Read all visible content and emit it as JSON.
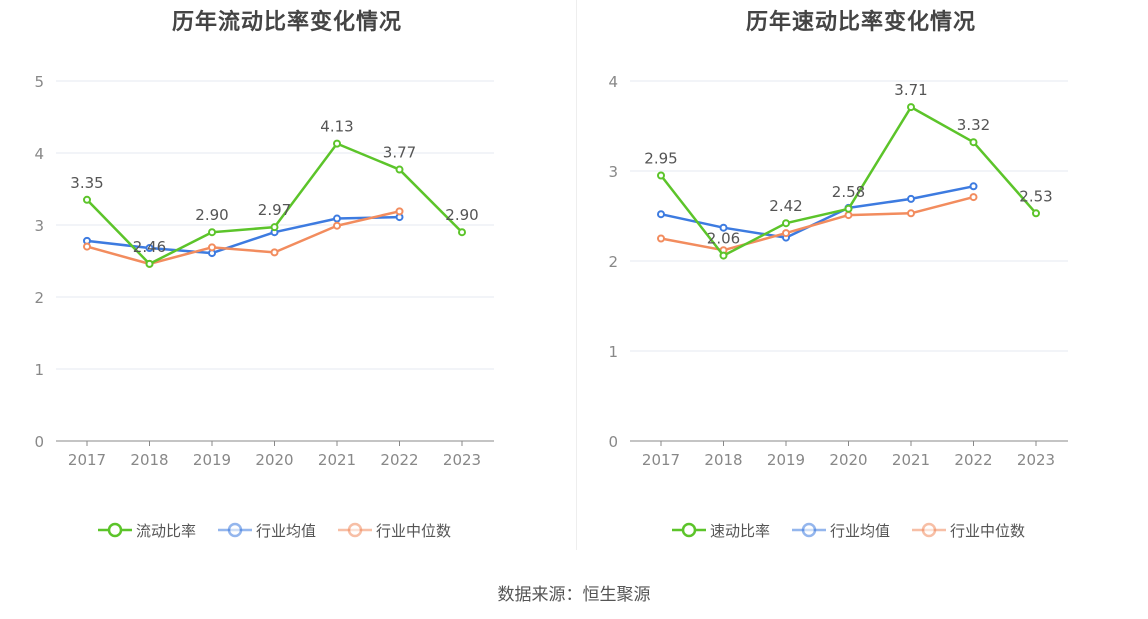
{
  "chart_data": [
    {
      "type": "line",
      "title": "历年流动比率变化情况",
      "categories": [
        "2017",
        "2018",
        "2019",
        "2020",
        "2021",
        "2022",
        "2023"
      ],
      "ylim": [
        0,
        5
      ],
      "yticks": [
        "0",
        "1",
        "2",
        "3",
        "4",
        "5"
      ],
      "series": [
        {
          "name": "流动比率",
          "color": "#5cc42a",
          "values": [
            3.35,
            2.46,
            2.9,
            2.97,
            4.13,
            3.77,
            2.9
          ],
          "labels": [
            "3.35",
            "2.46",
            "2.90",
            "2.97",
            "4.13",
            "3.77",
            "2.90"
          ]
        },
        {
          "name": "行业均值",
          "color": "#3d7be0",
          "values": [
            2.78,
            2.68,
            2.61,
            2.9,
            3.09,
            3.11,
            null
          ]
        },
        {
          "name": "行业中位数",
          "color": "#f28c5e",
          "values": [
            2.7,
            2.46,
            2.69,
            2.62,
            2.99,
            3.19,
            null
          ]
        }
      ]
    },
    {
      "type": "line",
      "title": "历年速动比率变化情况",
      "categories": [
        "2017",
        "2018",
        "2019",
        "2020",
        "2021",
        "2022",
        "2023"
      ],
      "ylim": [
        0,
        4
      ],
      "yticks": [
        "0",
        "1",
        "2",
        "3",
        "4"
      ],
      "series": [
        {
          "name": "速动比率",
          "color": "#5cc42a",
          "values": [
            2.95,
            2.06,
            2.42,
            2.58,
            3.71,
            3.32,
            2.53
          ],
          "labels": [
            "2.95",
            "2.06",
            "2.42",
            "2.58",
            "3.71",
            "3.32",
            "2.53"
          ]
        },
        {
          "name": "行业均值",
          "color": "#3d7be0",
          "values": [
            2.52,
            2.37,
            2.26,
            2.59,
            2.69,
            2.83,
            null
          ]
        },
        {
          "name": "行业中位数",
          "color": "#f28c5e",
          "values": [
            2.25,
            2.12,
            2.31,
            2.51,
            2.53,
            2.71,
            null
          ]
        }
      ]
    }
  ],
  "footer": {
    "source": "数据来源：恒生聚源"
  }
}
